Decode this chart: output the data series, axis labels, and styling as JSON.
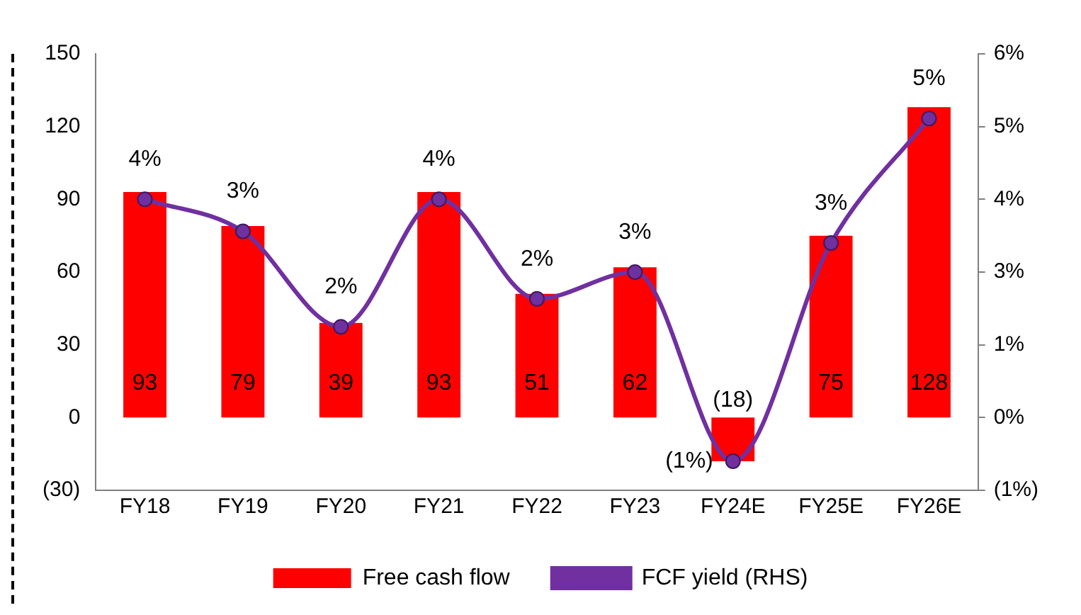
{
  "chart_data": {
    "type": "bar",
    "categories": [
      "FY18",
      "FY19",
      "FY20",
      "FY21",
      "FY22",
      "FY23",
      "FY24E",
      "FY25E",
      "FY26E"
    ],
    "series": [
      {
        "name": "Free cash flow",
        "color": "#ff0000",
        "values": [
          93,
          79,
          39,
          93,
          51,
          62,
          -18,
          75,
          128
        ],
        "value_labels": [
          "93",
          "79",
          "39",
          "93",
          "51",
          "62",
          "(18)",
          "75",
          "128"
        ]
      },
      {
        "name": "FCF yield (RHS)",
        "type": "line",
        "axis": "y2",
        "color": "#7030a0",
        "marker": "circle",
        "values": [
          3.75,
          3.2,
          1.56,
          3.75,
          2.04,
          2.5,
          -0.75,
          3.0,
          5.14
        ],
        "value_labels": [
          "4%",
          "3%",
          "2%",
          "4%",
          "2%",
          "3%",
          "(1%)",
          "3%",
          "5%"
        ]
      }
    ],
    "ylim": [
      -30,
      150
    ],
    "yticks": [
      {
        "value": -30,
        "label": "(30)"
      },
      0,
      30,
      60,
      90,
      120,
      150
    ],
    "y2lim": [
      -1.25,
      6.25
    ],
    "y2ticks": [
      {
        "value": -1.25,
        "label": "(1%)"
      },
      {
        "value": 0,
        "label": "0%"
      },
      {
        "value": 1.25,
        "label": "1%"
      },
      {
        "value": 2.5,
        "label": "3%"
      },
      {
        "value": 3.75,
        "label": "4%"
      },
      {
        "value": 5,
        "label": "5%"
      },
      {
        "value": 6.25,
        "label": "6%"
      }
    ],
    "grid": false,
    "legend": "bottom"
  }
}
